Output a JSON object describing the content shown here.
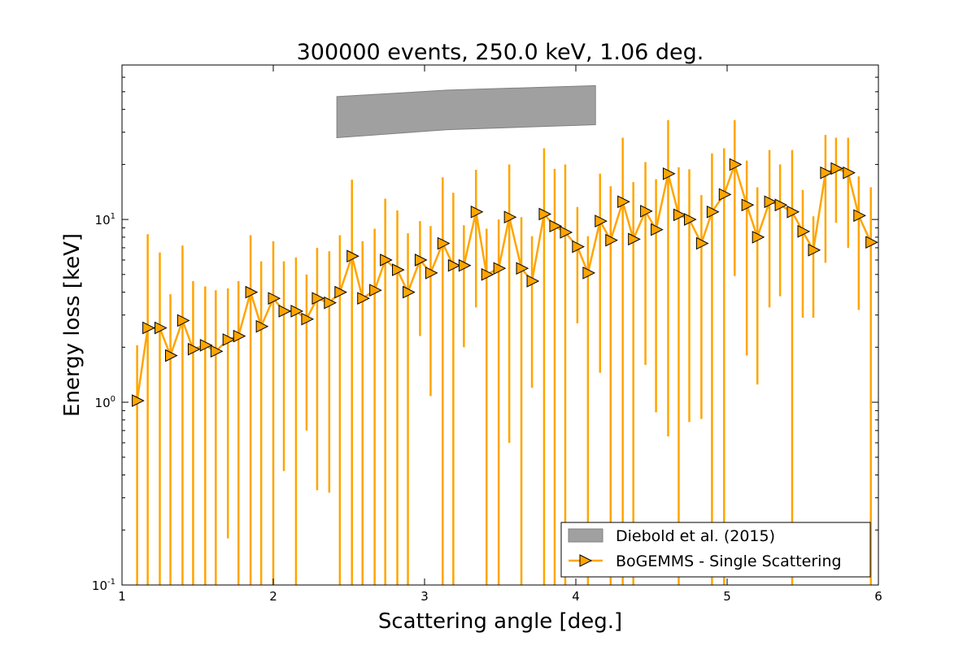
{
  "chart_data": {
    "type": "line",
    "title": "300000 events, 250.0 keV, 1.06 deg.",
    "xlabel": "Scattering angle [deg.]",
    "ylabel": "Energy loss [keV]",
    "xlim": [
      1,
      6
    ],
    "ylim": [
      0.1,
      70
    ],
    "yscale": "log",
    "xticks": [
      1,
      2,
      3,
      4,
      5,
      6
    ],
    "xtick_labels": [
      "1",
      "2",
      "3",
      "4",
      "5",
      "6"
    ],
    "yticks": [
      0.1,
      1,
      10
    ],
    "ytick_labels": [
      {
        "base": "10",
        "exp": "-1"
      },
      {
        "base": "10",
        "exp": "0"
      },
      {
        "base": "10",
        "exp": "1"
      }
    ],
    "legend_location": "bottom-right",
    "band": {
      "name": "Diebold et al. (2015)",
      "color": "#a0a0a0",
      "x": [
        2.42,
        3.15,
        4.13
      ],
      "lower": [
        28,
        31,
        33
      ],
      "upper": [
        47,
        51,
        54
      ]
    },
    "series": [
      {
        "name": "BoGEMMS - Single Scattering",
        "color": "#ffa500",
        "marker": "triangle-right",
        "x": [
          1.1,
          1.17,
          1.25,
          1.32,
          1.4,
          1.47,
          1.55,
          1.62,
          1.7,
          1.77,
          1.85,
          1.92,
          2.0,
          2.07,
          2.15,
          2.22,
          2.29,
          2.37,
          2.44,
          2.52,
          2.59,
          2.67,
          2.74,
          2.82,
          2.89,
          2.97,
          3.04,
          3.12,
          3.19,
          3.26,
          3.34,
          3.41,
          3.49,
          3.56,
          3.64,
          3.71,
          3.79,
          3.86,
          3.93,
          4.01,
          4.08,
          4.16,
          4.23,
          4.31,
          4.38,
          4.46,
          4.53,
          4.61,
          4.68,
          4.75,
          4.83,
          4.9,
          4.98,
          5.05,
          5.13,
          5.2,
          5.28,
          5.35,
          5.43,
          5.5,
          5.57,
          5.65,
          5.72,
          5.8,
          5.87,
          5.95
        ],
        "y": [
          1.02,
          2.55,
          2.55,
          1.8,
          2.8,
          1.95,
          2.05,
          1.9,
          2.2,
          2.3,
          4.0,
          2.6,
          3.7,
          3.15,
          3.15,
          2.85,
          3.7,
          3.5,
          4.0,
          6.3,
          3.7,
          4.1,
          6.0,
          5.3,
          4.0,
          6.0,
          5.1,
          7.4,
          5.6,
          5.6,
          11.0,
          5.0,
          5.4,
          10.3,
          5.4,
          4.6,
          10.7,
          9.2,
          8.5,
          7.1,
          5.1,
          9.8,
          7.7,
          12.5,
          7.8,
          11.1,
          8.8,
          17.8,
          10.6,
          10.0,
          7.4,
          11.0,
          13.7,
          20.0,
          12.0,
          8.0,
          12.5,
          12.0,
          11.0,
          8.6,
          6.8,
          18.0,
          19.0,
          18.0,
          10.5,
          7.5
        ],
        "err_low": [
          0.0,
          0.0,
          0.0,
          0.0,
          0.0,
          0.0,
          0.0,
          0.0,
          0.18,
          0.0,
          0.0,
          0.0,
          0.0,
          0.42,
          0.0,
          0.7,
          0.33,
          0.32,
          0.0,
          0.0,
          0.0,
          0.0,
          0.0,
          0.0,
          0.0,
          2.3,
          1.08,
          0.0,
          0.0,
          2.0,
          3.3,
          0.0,
          0.0,
          0.6,
          0.0,
          1.2,
          0.0,
          0.0,
          0.0,
          2.7,
          0.0,
          1.45,
          0.0,
          0.0,
          0.0,
          1.6,
          0.88,
          0.65,
          0.0,
          0.78,
          0.81,
          0.0,
          0.0,
          4.9,
          1.8,
          1.25,
          3.3,
          3.8,
          0.0,
          2.9,
          2.9,
          5.8,
          9.6,
          7.0,
          3.2,
          0.0
        ],
        "err_high": [
          2.05,
          8.3,
          6.6,
          3.9,
          7.2,
          4.6,
          4.3,
          4.1,
          4.2,
          4.6,
          8.2,
          5.9,
          7.6,
          5.9,
          6.2,
          5.0,
          7.0,
          6.7,
          8.2,
          16.5,
          7.6,
          8.9,
          13.0,
          11.2,
          8.4,
          9.8,
          9.2,
          17.0,
          14.0,
          9.3,
          18.7,
          8.9,
          10.0,
          20.0,
          10.3,
          8.1,
          24.5,
          18.9,
          20.0,
          11.7,
          8.1,
          17.8,
          15.2,
          28.0,
          16.0,
          20.6,
          16.6,
          35.0,
          19.3,
          18.8,
          13.6,
          23.0,
          24.5,
          35.0,
          21.0,
          15.0,
          24.0,
          20.0,
          24.0,
          14.5,
          10.4,
          29.0,
          28.0,
          28.0,
          17.2,
          15.0
        ]
      }
    ]
  }
}
